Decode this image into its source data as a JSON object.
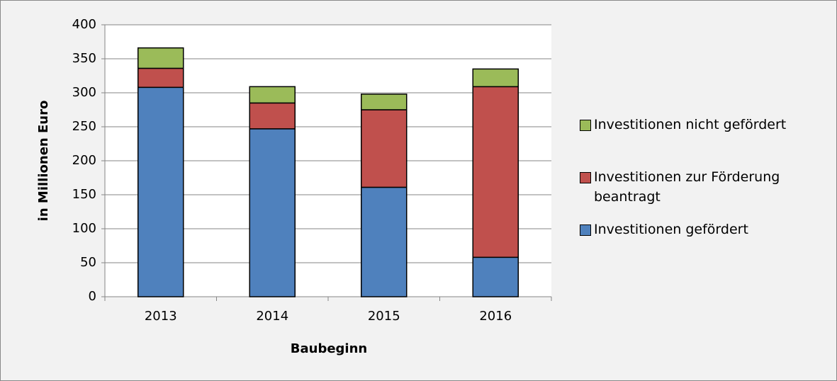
{
  "chart_data": {
    "type": "stacked_bar",
    "x_label": "Baubeginn",
    "y_label": "in Millionen Euro",
    "categories": [
      "2013",
      "2014",
      "2015",
      "2016"
    ],
    "series": [
      {
        "name": "Investitionen gefördert",
        "color": "#4f81bd",
        "values": [
          308,
          247,
          161,
          58
        ]
      },
      {
        "name": "Investitionen zur Förderung beantragt",
        "color": "#c0504d",
        "values": [
          28,
          38,
          114,
          251
        ]
      },
      {
        "name": "Investitionen nicht gefördert",
        "color": "#9bbb59",
        "values": [
          30,
          24,
          23,
          26
        ]
      }
    ],
    "ylim": [
      0,
      400
    ],
    "yticks": [
      0,
      50,
      100,
      150,
      200,
      250,
      300,
      350,
      400
    ],
    "grid": true,
    "legend": "right"
  }
}
